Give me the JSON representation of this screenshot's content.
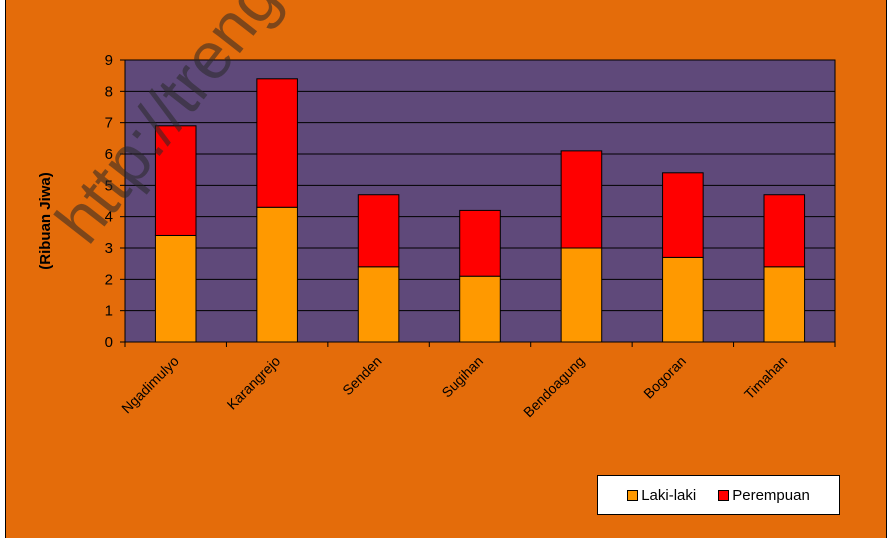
{
  "watermark": "http://trengga",
  "chart_data": {
    "type": "bar",
    "stacked": true,
    "categories": [
      "Ngadimulyo",
      "Karangrejo",
      "Senden",
      "Sugihan",
      "Bendoagung",
      "Bogoran",
      "Timahan"
    ],
    "series": [
      {
        "name": "Laki-laki",
        "values": [
          3.4,
          4.3,
          2.4,
          2.1,
          3.0,
          2.7,
          2.4
        ],
        "color": "#FF9900"
      },
      {
        "name": "Perempuan",
        "values": [
          3.5,
          4.1,
          2.3,
          2.1,
          3.1,
          2.7,
          2.3
        ],
        "color": "#FF0000"
      }
    ],
    "ylabel": "(Ribuan Jiwa)",
    "xlabel": "",
    "ylim": [
      0,
      9
    ],
    "yticks": [
      "0",
      "1",
      "2",
      "3",
      "4",
      "5",
      "6",
      "7",
      "8",
      "9"
    ],
    "grid": true,
    "plot_background": "#5F497A",
    "chart_background": "#E46C0A",
    "legend_position": "bottom-right"
  }
}
